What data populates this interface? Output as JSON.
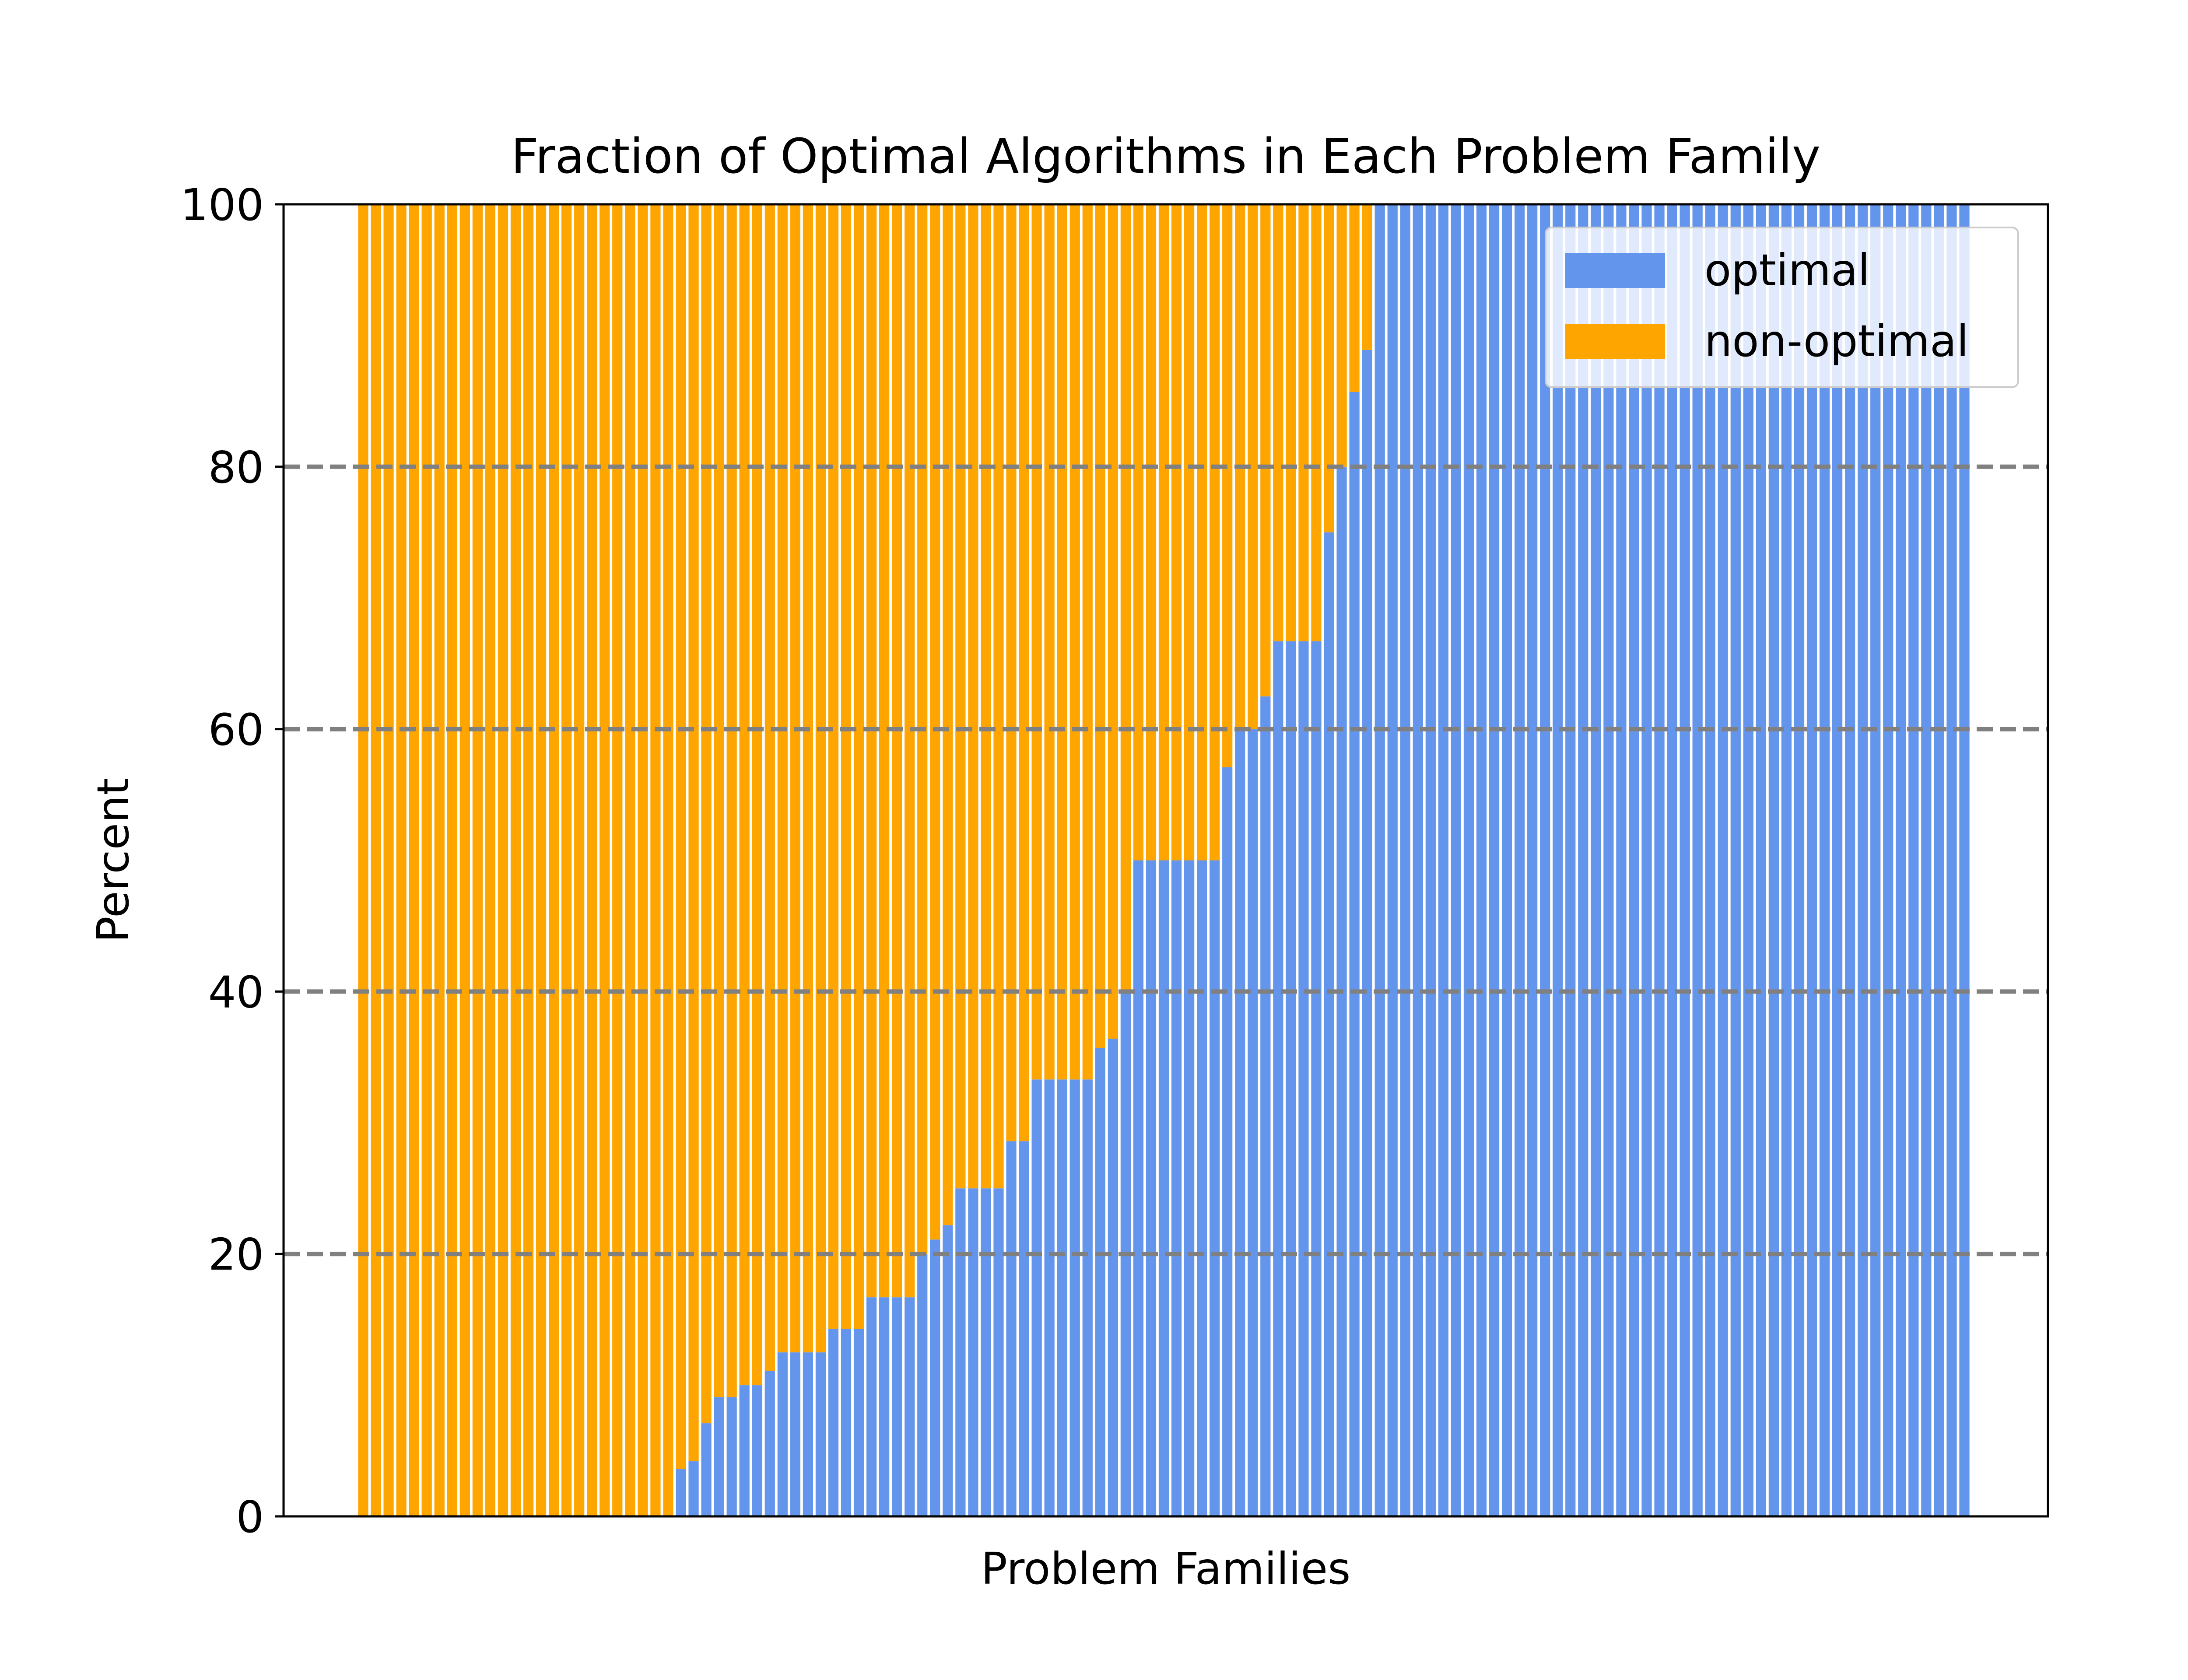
{
  "chart_data": {
    "type": "bar",
    "stacked": true,
    "title": "Fraction of Optimal Algorithms in Each Problem Family",
    "xlabel": "Problem Families",
    "ylabel": "Percent",
    "ylim": [
      0,
      100
    ],
    "yticks": [
      0,
      20,
      40,
      60,
      80,
      100
    ],
    "grid": "dashed horizontal at 20, 40, 60, 80",
    "legend_placement": "top-right",
    "series": [
      {
        "name": "optimal",
        "color": "#6495ED",
        "values": [
          0,
          0,
          0,
          0,
          0,
          0,
          0,
          0,
          0,
          0,
          0,
          0,
          0,
          0,
          0,
          0,
          0,
          0,
          0,
          0,
          0,
          0,
          0,
          0,
          0,
          3.6,
          4.2,
          7.1,
          9.1,
          9.1,
          10,
          10,
          11.1,
          12.5,
          12.5,
          12.5,
          12.5,
          14.3,
          14.3,
          14.3,
          16.7,
          16.7,
          16.7,
          16.7,
          20,
          21.1,
          22.2,
          25,
          25,
          25,
          25,
          28.6,
          28.6,
          33.3,
          33.3,
          33.3,
          33.3,
          33.3,
          35.7,
          36.4,
          40,
          50,
          50,
          50,
          50,
          50,
          50,
          50,
          57.1,
          60,
          60,
          62.5,
          66.7,
          66.7,
          66.7,
          66.7,
          75,
          80,
          85.7,
          88.9,
          100,
          100,
          100,
          100,
          100,
          100,
          100,
          100,
          100,
          100,
          100,
          100,
          100,
          100,
          100,
          100,
          100,
          100,
          100,
          100,
          100,
          100,
          100,
          100,
          100,
          100,
          100,
          100,
          100,
          100,
          100,
          100,
          100,
          100,
          100,
          100,
          100,
          100,
          100,
          100,
          100,
          100,
          100,
          100,
          100,
          100,
          100
        ]
      },
      {
        "name": "non-optimal",
        "color": "#FFA500",
        "values": "complement of optimal (100 - optimal) for each problem family"
      }
    ]
  }
}
